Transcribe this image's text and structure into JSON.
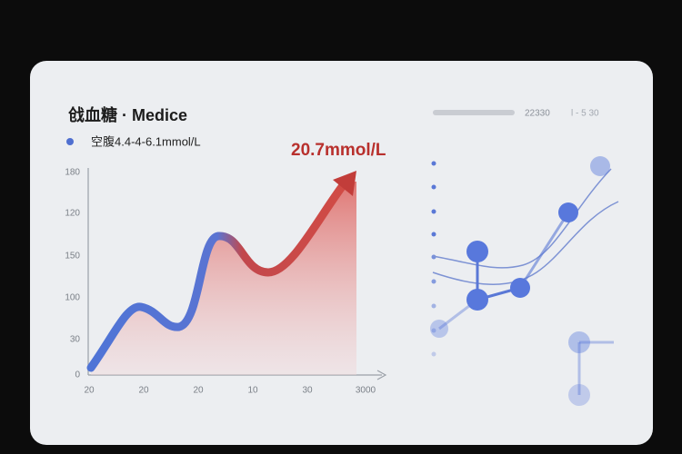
{
  "panel": {
    "title": "戗血糖 · Medice",
    "legend": "空腹4.4-4-6.1mmol/L",
    "annotation": "20.7mmol/L",
    "y_axis_labels": [
      "180",
      "120",
      "150",
      "100",
      "30",
      "0"
    ],
    "x_axis_labels": [
      "20",
      "20",
      "20",
      "10",
      "30",
      "3000"
    ],
    "side_header": "22330",
    "side_meta": "l  -  5  30"
  }
}
